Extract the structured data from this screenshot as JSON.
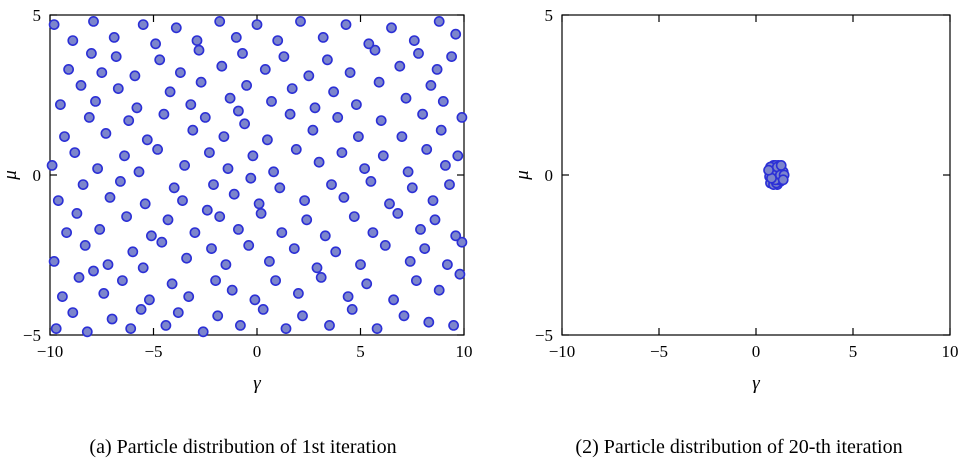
{
  "style": {
    "marker_fill": "#7c85cc",
    "marker_edge": "#2b2fd6",
    "axis_color": "#000000"
  },
  "chart_data": [
    {
      "type": "scatter",
      "caption": "(a) Particle distribution of 1st iteration",
      "xlabel": "γ",
      "ylabel": "μ",
      "xlim": [
        -10,
        10
      ],
      "ylim": [
        -5,
        5
      ],
      "grid": false,
      "legend": "none",
      "xticks": [
        {
          "v": -10,
          "label": "−10"
        },
        {
          "v": -5,
          "label": "−5"
        },
        {
          "v": 0,
          "label": "0"
        },
        {
          "v": 5,
          "label": "5"
        },
        {
          "v": 10,
          "label": "10"
        }
      ],
      "yticks": [
        {
          "v": -5,
          "label": "−5"
        },
        {
          "v": 0,
          "label": "0"
        },
        {
          "v": 5,
          "label": "5"
        }
      ],
      "points": [
        [
          -9.7,
          -4.8
        ],
        [
          -8.9,
          -4.3
        ],
        [
          -8.2,
          -4.9
        ],
        [
          -7.0,
          -4.5
        ],
        [
          -6.1,
          -4.8
        ],
        [
          -5.6,
          -4.2
        ],
        [
          -4.4,
          -4.7
        ],
        [
          -3.8,
          -4.3
        ],
        [
          -2.6,
          -4.9
        ],
        [
          -1.9,
          -4.4
        ],
        [
          -0.8,
          -4.7
        ],
        [
          0.3,
          -4.2
        ],
        [
          1.4,
          -4.8
        ],
        [
          2.2,
          -4.4
        ],
        [
          3.5,
          -4.7
        ],
        [
          4.6,
          -4.2
        ],
        [
          5.8,
          -4.8
        ],
        [
          7.1,
          -4.4
        ],
        [
          8.3,
          -4.6
        ],
        [
          9.5,
          -4.7
        ],
        [
          -9.4,
          -3.8
        ],
        [
          -8.6,
          -3.2
        ],
        [
          -7.4,
          -3.7
        ],
        [
          -6.5,
          -3.3
        ],
        [
          -5.2,
          -3.9
        ],
        [
          -4.1,
          -3.4
        ],
        [
          -3.3,
          -3.8
        ],
        [
          -2.0,
          -3.3
        ],
        [
          -1.2,
          -3.6
        ],
        [
          -0.1,
          -3.9
        ],
        [
          0.9,
          -3.3
        ],
        [
          2.0,
          -3.7
        ],
        [
          3.1,
          -3.2
        ],
        [
          4.4,
          -3.8
        ],
        [
          5.3,
          -3.4
        ],
        [
          6.6,
          -3.9
        ],
        [
          7.7,
          -3.3
        ],
        [
          8.8,
          -3.6
        ],
        [
          9.8,
          -3.1
        ],
        [
          -7.9,
          -3.0
        ],
        [
          -9.8,
          -2.7
        ],
        [
          -8.3,
          -2.2
        ],
        [
          -7.2,
          -2.8
        ],
        [
          -6.0,
          -2.4
        ],
        [
          -5.5,
          -2.9
        ],
        [
          -4.6,
          -2.1
        ],
        [
          -3.4,
          -2.6
        ],
        [
          -2.2,
          -2.3
        ],
        [
          -1.5,
          -2.8
        ],
        [
          -0.4,
          -2.2
        ],
        [
          0.6,
          -2.7
        ],
        [
          1.8,
          -2.3
        ],
        [
          2.9,
          -2.9
        ],
        [
          3.8,
          -2.4
        ],
        [
          5.0,
          -2.8
        ],
        [
          6.2,
          -2.2
        ],
        [
          7.4,
          -2.7
        ],
        [
          8.1,
          -2.3
        ],
        [
          9.2,
          -2.8
        ],
        [
          9.9,
          -2.1
        ],
        [
          -9.2,
          -1.8
        ],
        [
          -8.7,
          -1.2
        ],
        [
          -7.6,
          -1.7
        ],
        [
          -6.3,
          -1.3
        ],
        [
          -5.1,
          -1.9
        ],
        [
          -4.3,
          -1.4
        ],
        [
          -3.0,
          -1.8
        ],
        [
          -1.8,
          -1.3
        ],
        [
          -0.9,
          -1.7
        ],
        [
          0.2,
          -1.2
        ],
        [
          1.2,
          -1.8
        ],
        [
          2.4,
          -1.4
        ],
        [
          3.3,
          -1.9
        ],
        [
          4.7,
          -1.3
        ],
        [
          5.6,
          -1.8
        ],
        [
          6.8,
          -1.2
        ],
        [
          7.9,
          -1.7
        ],
        [
          8.6,
          -1.4
        ],
        [
          9.6,
          -1.9
        ],
        [
          -2.4,
          -1.1
        ],
        [
          -9.6,
          -0.8
        ],
        [
          -8.4,
          -0.3
        ],
        [
          -7.1,
          -0.7
        ],
        [
          -6.6,
          -0.2
        ],
        [
          -5.4,
          -0.9
        ],
        [
          -4.0,
          -0.4
        ],
        [
          -3.6,
          -0.8
        ],
        [
          -2.1,
          -0.3
        ],
        [
          -1.1,
          -0.6
        ],
        [
          0.1,
          -0.9
        ],
        [
          1.1,
          -0.4
        ],
        [
          2.3,
          -0.8
        ],
        [
          3.6,
          -0.3
        ],
        [
          4.2,
          -0.7
        ],
        [
          5.5,
          -0.2
        ],
        [
          6.4,
          -0.9
        ],
        [
          7.5,
          -0.4
        ],
        [
          8.5,
          -0.8
        ],
        [
          9.3,
          -0.3
        ],
        [
          -0.3,
          -0.1
        ],
        [
          -9.9,
          0.3
        ],
        [
          -8.8,
          0.7
        ],
        [
          -7.7,
          0.2
        ],
        [
          -6.4,
          0.6
        ],
        [
          -5.7,
          0.1
        ],
        [
          -4.8,
          0.8
        ],
        [
          -3.5,
          0.3
        ],
        [
          -2.3,
          0.7
        ],
        [
          -1.4,
          0.2
        ],
        [
          -0.2,
          0.6
        ],
        [
          0.8,
          0.1
        ],
        [
          1.9,
          0.8
        ],
        [
          3.0,
          0.4
        ],
        [
          4.1,
          0.7
        ],
        [
          5.2,
          0.2
        ],
        [
          6.1,
          0.6
        ],
        [
          7.3,
          0.1
        ],
        [
          8.2,
          0.8
        ],
        [
          9.1,
          0.3
        ],
        [
          9.7,
          0.6
        ],
        [
          -9.3,
          1.2
        ],
        [
          -8.1,
          1.8
        ],
        [
          -7.3,
          1.3
        ],
        [
          -6.2,
          1.7
        ],
        [
          -5.3,
          1.1
        ],
        [
          -4.5,
          1.9
        ],
        [
          -3.1,
          1.4
        ],
        [
          -2.5,
          1.8
        ],
        [
          -1.6,
          1.2
        ],
        [
          -0.6,
          1.6
        ],
        [
          0.5,
          1.1
        ],
        [
          1.6,
          1.9
        ],
        [
          2.7,
          1.4
        ],
        [
          3.9,
          1.8
        ],
        [
          4.9,
          1.2
        ],
        [
          6.0,
          1.7
        ],
        [
          7.0,
          1.2
        ],
        [
          8.0,
          1.9
        ],
        [
          8.9,
          1.4
        ],
        [
          9.9,
          1.8
        ],
        [
          -9.5,
          2.2
        ],
        [
          -8.5,
          2.8
        ],
        [
          -7.8,
          2.3
        ],
        [
          -6.7,
          2.7
        ],
        [
          -5.8,
          2.1
        ],
        [
          -4.2,
          2.6
        ],
        [
          -3.2,
          2.2
        ],
        [
          -2.7,
          2.9
        ],
        [
          -1.3,
          2.4
        ],
        [
          -0.5,
          2.8
        ],
        [
          0.7,
          2.3
        ],
        [
          1.7,
          2.7
        ],
        [
          2.8,
          2.1
        ],
        [
          3.7,
          2.6
        ],
        [
          4.8,
          2.2
        ],
        [
          5.9,
          2.9
        ],
        [
          7.2,
          2.4
        ],
        [
          8.4,
          2.8
        ],
        [
          9.0,
          2.3
        ],
        [
          -0.9,
          2.0
        ],
        [
          -9.1,
          3.3
        ],
        [
          -8.0,
          3.8
        ],
        [
          -7.5,
          3.2
        ],
        [
          -6.8,
          3.7
        ],
        [
          -5.9,
          3.1
        ],
        [
          -4.7,
          3.6
        ],
        [
          -3.7,
          3.2
        ],
        [
          -2.8,
          3.9
        ],
        [
          -1.7,
          3.4
        ],
        [
          -0.7,
          3.8
        ],
        [
          0.4,
          3.3
        ],
        [
          1.3,
          3.7
        ],
        [
          2.5,
          3.1
        ],
        [
          3.4,
          3.6
        ],
        [
          4.5,
          3.2
        ],
        [
          5.7,
          3.9
        ],
        [
          6.9,
          3.4
        ],
        [
          7.8,
          3.8
        ],
        [
          8.7,
          3.3
        ],
        [
          9.4,
          3.7
        ],
        [
          -9.8,
          4.7
        ],
        [
          -8.9,
          4.2
        ],
        [
          -7.9,
          4.8
        ],
        [
          -6.9,
          4.3
        ],
        [
          -5.5,
          4.7
        ],
        [
          -4.9,
          4.1
        ],
        [
          -3.9,
          4.6
        ],
        [
          -2.9,
          4.2
        ],
        [
          -1.8,
          4.8
        ],
        [
          -1.0,
          4.3
        ],
        [
          0.0,
          4.7
        ],
        [
          1.0,
          4.2
        ],
        [
          2.1,
          4.8
        ],
        [
          3.2,
          4.3
        ],
        [
          4.3,
          4.7
        ],
        [
          5.4,
          4.1
        ],
        [
          6.5,
          4.6
        ],
        [
          7.6,
          4.2
        ],
        [
          8.8,
          4.8
        ],
        [
          9.6,
          4.4
        ]
      ]
    },
    {
      "type": "scatter",
      "caption": "(2) Particle distribution of 20-th iteration",
      "xlabel": "γ",
      "ylabel": "μ",
      "xlim": [
        -10,
        10
      ],
      "ylim": [
        -5,
        5
      ],
      "grid": false,
      "legend": "none",
      "xticks": [
        {
          "v": -10,
          "label": "−10"
        },
        {
          "v": -5,
          "label": "−5"
        },
        {
          "v": 0,
          "label": "0"
        },
        {
          "v": 5,
          "label": "5"
        },
        {
          "v": 10,
          "label": "10"
        }
      ],
      "yticks": [
        {
          "v": -5,
          "label": "−5"
        },
        {
          "v": 0,
          "label": "0"
        },
        {
          "v": 5,
          "label": "5"
        }
      ],
      "points": [
        [
          0.9,
          0.1
        ],
        [
          1.0,
          -0.05
        ],
        [
          1.1,
          0.15
        ],
        [
          0.8,
          0.0
        ],
        [
          1.2,
          0.05
        ],
        [
          0.95,
          0.25
        ],
        [
          1.05,
          -0.2
        ],
        [
          1.15,
          0.3
        ],
        [
          0.85,
          -0.15
        ],
        [
          1.25,
          0.2
        ],
        [
          0.7,
          0.1
        ],
        [
          1.3,
          -0.1
        ],
        [
          0.9,
          0.3
        ],
        [
          1.0,
          0.2
        ],
        [
          1.1,
          -0.3
        ],
        [
          1.2,
          0.25
        ],
        [
          0.75,
          -0.25
        ],
        [
          1.35,
          0.05
        ],
        [
          0.95,
          -0.1
        ],
        [
          1.05,
          0.05
        ],
        [
          1.15,
          0.1
        ],
        [
          0.8,
          0.2
        ],
        [
          1.25,
          -0.2
        ],
        [
          0.9,
          -0.3
        ],
        [
          1.0,
          0.3
        ],
        [
          1.1,
          0.0
        ],
        [
          1.3,
          0.15
        ],
        [
          0.85,
          0.05
        ],
        [
          1.2,
          -0.05
        ],
        [
          0.7,
          -0.05
        ],
        [
          1.4,
          0.1
        ],
        [
          0.95,
          0.15
        ],
        [
          1.05,
          -0.25
        ],
        [
          1.15,
          -0.15
        ],
        [
          0.75,
          0.25
        ],
        [
          1.35,
          -0.05
        ],
        [
          0.9,
          0.0
        ],
        [
          1.0,
          -0.15
        ],
        [
          1.1,
          0.25
        ],
        [
          1.25,
          0.0
        ],
        [
          0.8,
          -0.1
        ],
        [
          1.3,
          0.3
        ],
        [
          1.45,
          0.0
        ],
        [
          0.65,
          0.15
        ],
        [
          1.4,
          -0.15
        ]
      ]
    }
  ]
}
